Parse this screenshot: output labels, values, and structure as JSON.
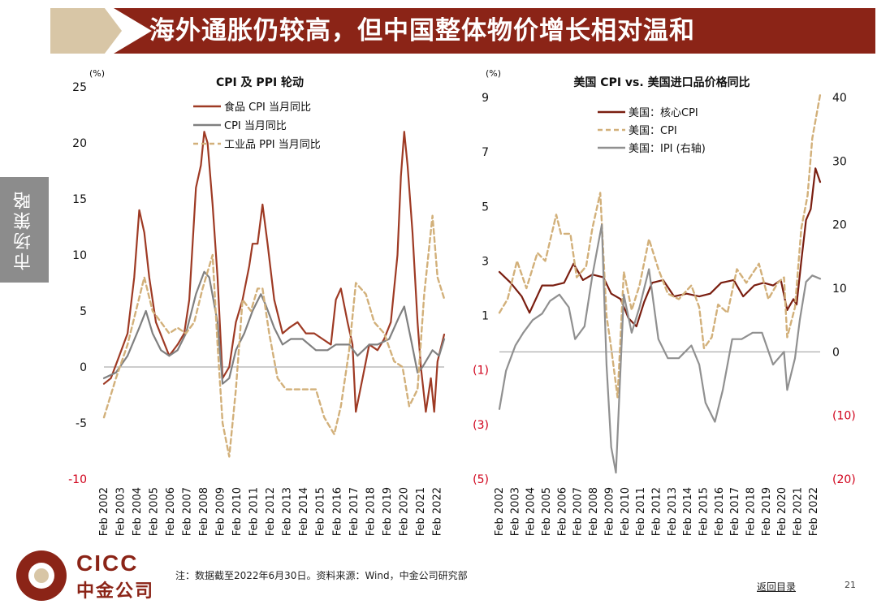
{
  "header": {
    "title": "海外通胀仍较高，但中国整体物价增长相对温和"
  },
  "sidebar": {
    "label": "市场策略"
  },
  "footer": {
    "note": "注：数据截至2022年6月30日。资料来源：Wind，中金公司研究部",
    "back_link": "返回目录",
    "page_number": "21"
  },
  "logo": {
    "en": "CICC",
    "cn": "中金公司"
  },
  "colors": {
    "banner_red": "#8b2417",
    "banner_tan": "#d8c6a6",
    "sidebar_gray": "#8c8c8c",
    "food_cpi": "#9e3a24",
    "cpi": "#808080",
    "ppi": "#d2b07a",
    "negative_tick": "#d0021b"
  },
  "chart_data": [
    {
      "type": "line",
      "title": "CPI 及 PPI 轮动",
      "unit_label": "(%)",
      "ylim": [
        -10,
        25
      ],
      "yticks": [
        {
          "value": 25,
          "label": "25"
        },
        {
          "value": 20,
          "label": "20"
        },
        {
          "value": 15,
          "label": "15"
        },
        {
          "value": 10,
          "label": "10"
        },
        {
          "value": 5,
          "label": "5"
        },
        {
          "value": 0,
          "label": "0"
        },
        {
          "value": -5,
          "label": "-5"
        },
        {
          "value": -10,
          "label": "-10"
        }
      ],
      "xlim": [
        2002.08,
        2022.5
      ],
      "xticks": [
        "Feb 2002",
        "Feb 2003",
        "Feb 2004",
        "Feb 2005",
        "Feb 2006",
        "Feb 2007",
        "Feb 2008",
        "Feb 2009",
        "Feb 2010",
        "Feb 2011",
        "Feb 2012",
        "Feb 2013",
        "Feb 2014",
        "Feb 2015",
        "Feb 2016",
        "Feb 2017",
        "Feb 2018",
        "Feb 2019",
        "Feb 2020",
        "Feb 2021",
        "Feb 2022"
      ],
      "legend_position": "top-center",
      "series": [
        {
          "name": "食品 CPI 当月同比",
          "style": "solid",
          "color": "#9e3a24",
          "x": [
            2002.08,
            2002.5,
            2003.0,
            2003.5,
            2003.9,
            2004.2,
            2004.5,
            2004.8,
            2005.2,
            2005.6,
            2006.0,
            2006.5,
            2006.9,
            2007.2,
            2007.6,
            2007.9,
            2008.1,
            2008.3,
            2008.6,
            2008.9,
            2009.2,
            2009.6,
            2010.0,
            2010.4,
            2010.8,
            2011.0,
            2011.3,
            2011.6,
            2011.9,
            2012.3,
            2012.8,
            2013.2,
            2013.7,
            2014.2,
            2014.7,
            2015.2,
            2015.7,
            2016.0,
            2016.3,
            2016.7,
            2017.0,
            2017.2,
            2017.6,
            2018.0,
            2018.5,
            2018.9,
            2019.3,
            2019.7,
            2019.9,
            2020.1,
            2020.3,
            2020.6,
            2020.9,
            2021.1,
            2021.4,
            2021.7,
            2021.9,
            2022.1,
            2022.5
          ],
          "y": [
            -1.5,
            -1.0,
            1.0,
            3.0,
            8.0,
            14.0,
            12.0,
            8.0,
            4.0,
            2.5,
            1.0,
            2.0,
            3.0,
            6.0,
            16.0,
            18.0,
            21.0,
            20.0,
            14.5,
            8.0,
            -1.0,
            0.0,
            4.0,
            6.0,
            9.0,
            11.0,
            11.0,
            14.5,
            11.0,
            6.0,
            3.0,
            3.5,
            4.0,
            3.0,
            3.0,
            2.5,
            2.0,
            6.0,
            7.0,
            4.0,
            2.0,
            -4.0,
            -1.0,
            2.0,
            1.5,
            2.5,
            4.0,
            10.0,
            17.0,
            21.0,
            18.0,
            12.0,
            4.0,
            0.0,
            -4.0,
            -1.0,
            -4.0,
            0.5,
            2.9
          ]
        },
        {
          "name": "CPI 当月同比",
          "style": "solid",
          "color": "#808080",
          "x": [
            2002.08,
            2002.8,
            2003.5,
            2004.2,
            2004.6,
            2005.0,
            2005.5,
            2006.0,
            2006.5,
            2007.0,
            2007.6,
            2008.1,
            2008.4,
            2008.9,
            2009.2,
            2009.6,
            2010.0,
            2010.5,
            2011.0,
            2011.5,
            2011.8,
            2012.3,
            2012.8,
            2013.3,
            2014.0,
            2014.8,
            2015.5,
            2016.0,
            2016.8,
            2017.3,
            2018.0,
            2018.5,
            2019.2,
            2019.8,
            2020.1,
            2020.5,
            2020.9,
            2021.2,
            2021.8,
            2022.2,
            2022.5
          ],
          "y": [
            -1.0,
            -0.5,
            1.0,
            3.5,
            5.0,
            3.0,
            1.5,
            1.0,
            1.5,
            3.0,
            6.5,
            8.5,
            8.0,
            4.0,
            -1.5,
            -1.0,
            1.5,
            3.0,
            5.0,
            6.5,
            5.5,
            3.5,
            2.0,
            2.5,
            2.5,
            1.5,
            1.5,
            2.0,
            2.0,
            1.0,
            2.0,
            2.0,
            2.5,
            4.5,
            5.4,
            2.5,
            -0.5,
            0.0,
            1.5,
            1.0,
            2.5
          ]
        },
        {
          "name": "工业品 PPI 当月同比",
          "style": "dashed",
          "color": "#d2b07a",
          "x": [
            2002.08,
            2002.8,
            2003.5,
            2004.0,
            2004.5,
            2005.0,
            2005.5,
            2006.0,
            2006.5,
            2007.0,
            2007.5,
            2008.0,
            2008.6,
            2008.9,
            2009.2,
            2009.6,
            2010.0,
            2010.4,
            2010.9,
            2011.3,
            2011.6,
            2012.0,
            2012.5,
            2013.0,
            2013.6,
            2014.2,
            2014.8,
            2015.3,
            2015.9,
            2016.3,
            2016.8,
            2017.2,
            2017.8,
            2018.3,
            2018.9,
            2019.5,
            2020.0,
            2020.4,
            2020.9,
            2021.3,
            2021.8,
            2022.1,
            2022.5
          ],
          "y": [
            -4.5,
            -1.0,
            2.0,
            5.0,
            8.0,
            5.0,
            4.0,
            3.0,
            3.5,
            3.0,
            4.0,
            7.0,
            10.0,
            2.0,
            -5.0,
            -8.0,
            -2.0,
            6.0,
            5.0,
            7.0,
            7.0,
            3.0,
            -1.0,
            -2.0,
            -2.0,
            -2.0,
            -2.0,
            -4.5,
            -6.0,
            -3.5,
            1.5,
            7.5,
            6.5,
            4.0,
            3.0,
            0.5,
            0.0,
            -3.5,
            -2.0,
            6.5,
            13.5,
            8.0,
            6.1
          ]
        }
      ]
    },
    {
      "type": "line",
      "title": "美国 CPI vs. 美国进口品价格同比",
      "unit_label": "(%)",
      "ylim": [
        -5,
        9
      ],
      "yticks": [
        {
          "value": 9,
          "label": "9"
        },
        {
          "value": 7,
          "label": "7"
        },
        {
          "value": 5,
          "label": "5"
        },
        {
          "value": 3,
          "label": "3"
        },
        {
          "value": 1,
          "label": "1"
        },
        {
          "value": -1,
          "label": "(1)"
        },
        {
          "value": -3,
          "label": "(3)"
        },
        {
          "value": -5,
          "label": "(5)"
        }
      ],
      "y2lim": [
        -20,
        40
      ],
      "y2ticks": [
        {
          "value": 40,
          "label": "40"
        },
        {
          "value": 30,
          "label": "30"
        },
        {
          "value": 20,
          "label": "20"
        },
        {
          "value": 10,
          "label": "10"
        },
        {
          "value": 0,
          "label": "0"
        },
        {
          "value": -10,
          "label": "(10)"
        },
        {
          "value": -20,
          "label": "(20)"
        }
      ],
      "xlim": [
        2002.08,
        2022.5
      ],
      "xticks": [
        "Feb 2002",
        "Feb 2003",
        "Feb 2004",
        "Feb 2005",
        "Feb 2006",
        "Feb 2007",
        "Feb 2008",
        "Feb 2009",
        "Feb 2010",
        "Feb 2011",
        "Feb 2012",
        "Feb 2013",
        "Feb 2014",
        "Feb 2015",
        "Feb 2016",
        "Feb 2017",
        "Feb 2018",
        "Feb 2019",
        "Feb 2020",
        "Feb 2021",
        "Feb 2022"
      ],
      "legend_position": "top-center",
      "series": [
        {
          "name": "美国：核心CPI",
          "style": "solid",
          "color": "#7a1e10",
          "axis": "left",
          "x": [
            2002.08,
            2002.8,
            2003.5,
            2004.0,
            2004.8,
            2005.5,
            2006.2,
            2006.8,
            2007.4,
            2008.0,
            2008.7,
            2009.2,
            2009.8,
            2010.3,
            2010.8,
            2011.3,
            2011.8,
            2012.5,
            2013.2,
            2014.0,
            2014.8,
            2015.5,
            2016.2,
            2017.0,
            2017.6,
            2018.3,
            2018.9,
            2019.5,
            2020.0,
            2020.4,
            2020.8,
            2021.0,
            2021.3,
            2021.6,
            2021.9,
            2022.2,
            2022.5
          ],
          "y": [
            2.6,
            2.2,
            1.7,
            1.1,
            2.1,
            2.1,
            2.2,
            2.9,
            2.3,
            2.5,
            2.4,
            1.8,
            1.6,
            0.9,
            0.6,
            1.5,
            2.2,
            2.3,
            1.7,
            1.8,
            1.7,
            1.8,
            2.2,
            2.3,
            1.7,
            2.1,
            2.2,
            2.1,
            2.3,
            1.2,
            1.6,
            1.4,
            3.0,
            4.5,
            4.9,
            6.4,
            5.9
          ]
        },
        {
          "name": "美国：CPI",
          "style": "dashed",
          "color": "#d2b07a",
          "axis": "left",
          "x": [
            2002.08,
            2002.6,
            2003.2,
            2003.8,
            2004.5,
            2005.0,
            2005.7,
            2006.0,
            2006.6,
            2007.0,
            2007.6,
            2008.0,
            2008.5,
            2008.9,
            2009.2,
            2009.6,
            2010.0,
            2010.5,
            2011.0,
            2011.6,
            2012.2,
            2012.8,
            2013.5,
            2014.3,
            2014.8,
            2015.1,
            2015.6,
            2016.0,
            2016.6,
            2017.2,
            2017.8,
            2018.6,
            2019.2,
            2019.8,
            2020.2,
            2020.4,
            2020.9,
            2021.3,
            2021.7,
            2022.0,
            2022.5
          ],
          "y": [
            1.1,
            1.6,
            3.0,
            2.0,
            3.3,
            3.0,
            4.7,
            4.0,
            4.0,
            2.4,
            2.8,
            4.2,
            5.5,
            1.0,
            -0.2,
            -2.0,
            2.6,
            1.2,
            2.1,
            3.8,
            2.7,
            1.8,
            1.6,
            2.1,
            1.3,
            -0.2,
            0.2,
            1.4,
            1.1,
            2.7,
            2.2,
            2.9,
            1.6,
            2.2,
            2.4,
            0.2,
            1.3,
            4.2,
            5.4,
            7.5,
            9.1
          ]
        },
        {
          "name": "美国：IPI (右轴)",
          "style": "solid",
          "color": "#909090",
          "axis": "right",
          "x": [
            2002.08,
            2002.5,
            2003.1,
            2003.6,
            2004.2,
            2004.8,
            2005.3,
            2005.9,
            2006.5,
            2006.9,
            2007.5,
            2008.0,
            2008.6,
            2008.9,
            2009.2,
            2009.5,
            2010.0,
            2010.5,
            2011.0,
            2011.6,
            2012.2,
            2012.8,
            2013.5,
            2014.3,
            2014.8,
            2015.2,
            2015.8,
            2016.3,
            2016.9,
            2017.5,
            2018.2,
            2018.8,
            2019.5,
            2020.2,
            2020.4,
            2020.9,
            2021.2,
            2021.6,
            2022.0,
            2022.5
          ],
          "y": [
            -9.0,
            -3.0,
            1.0,
            3.0,
            5.0,
            6.0,
            8.0,
            9.0,
            7.0,
            2.0,
            4.0,
            12.0,
            20.0,
            -2.0,
            -15.0,
            -19.0,
            9.0,
            3.0,
            7.0,
            13.0,
            2.0,
            -1.0,
            -1.0,
            1.0,
            -2.0,
            -8.0,
            -11.0,
            -6.0,
            2.0,
            2.0,
            3.0,
            3.0,
            -2.0,
            0.0,
            -6.0,
            -1.0,
            5.0,
            11.0,
            12.0,
            11.5
          ]
        }
      ]
    }
  ]
}
